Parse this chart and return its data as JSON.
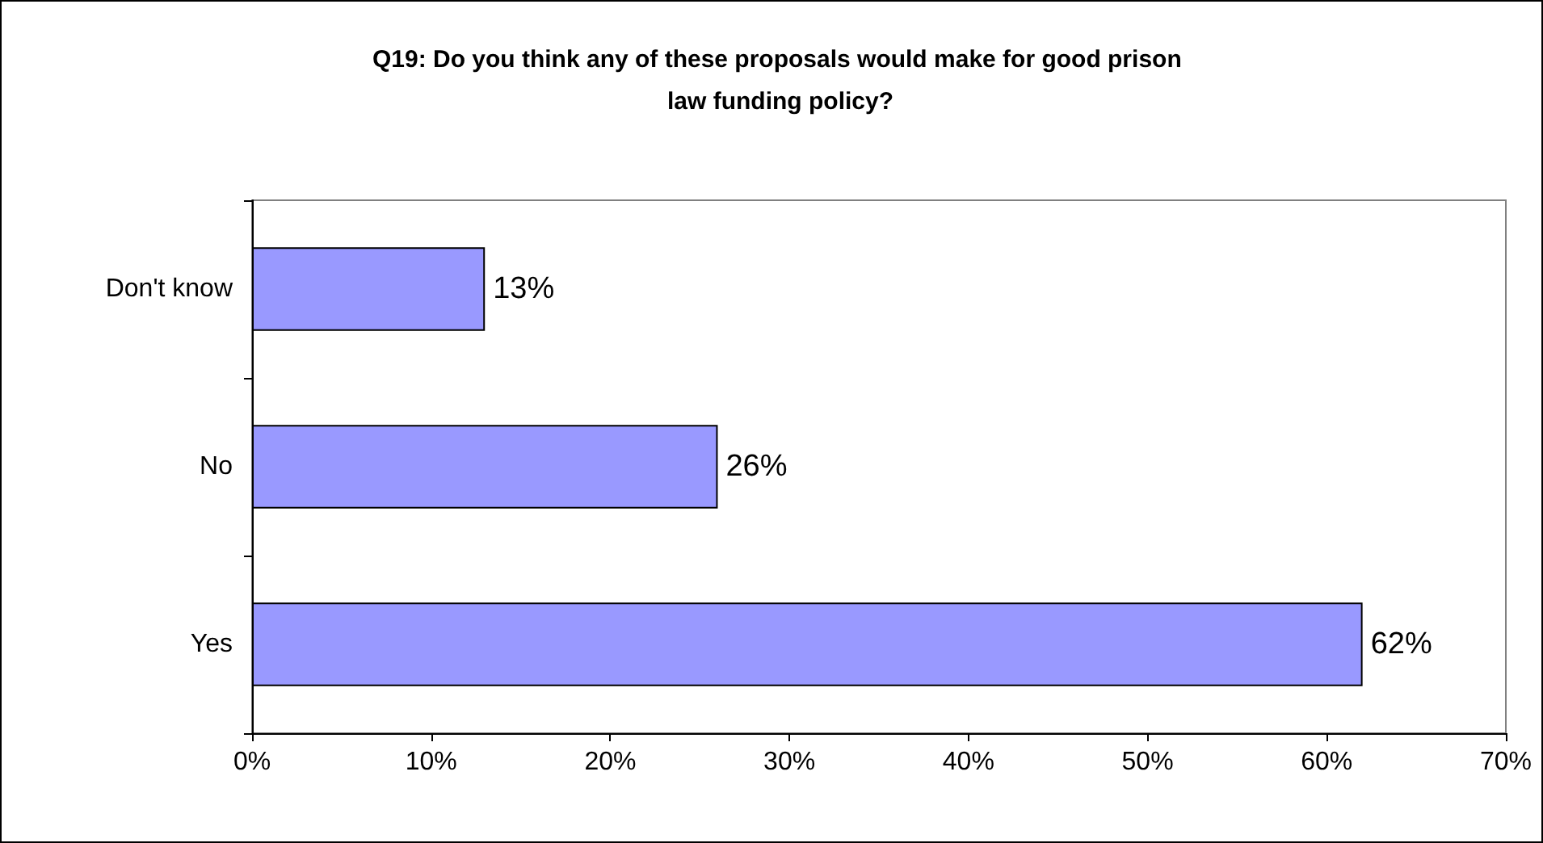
{
  "chart_data": {
    "type": "bar",
    "orientation": "horizontal",
    "title": "Q19: Do you think any of these proposals would make for good prison law funding policy?",
    "categories": [
      "Don't know",
      "No",
      "Yes"
    ],
    "values": [
      13,
      26,
      62
    ],
    "value_labels": [
      "13%",
      "26%",
      "62%"
    ],
    "color": "#9999ff",
    "xlim": [
      0,
      70
    ],
    "xticks": [
      {
        "value": 0,
        "label": "0%"
      },
      {
        "value": 10,
        "label": "10%"
      },
      {
        "value": 20,
        "label": "20%"
      },
      {
        "value": 30,
        "label": "30%"
      },
      {
        "value": 40,
        "label": "40%"
      },
      {
        "value": 50,
        "label": "50%"
      },
      {
        "value": 60,
        "label": "60%"
      },
      {
        "value": 70,
        "label": "70%"
      }
    ],
    "grid": false
  }
}
